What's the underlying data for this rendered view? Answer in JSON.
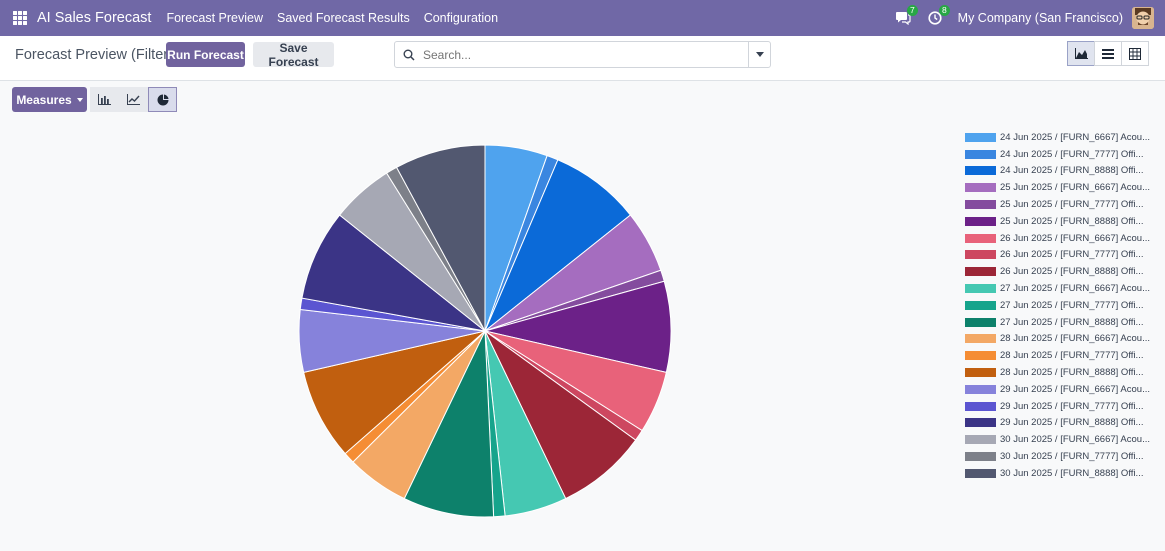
{
  "navbar": {
    "app_title": "AI Sales Forecast",
    "menu": [
      "Forecast Preview",
      "Saved Forecast Results",
      "Configuration"
    ],
    "messages_count": "7",
    "activities_count": "8",
    "company": "My Company (San Francisco)",
    "color": "#7068a6"
  },
  "control_panel": {
    "title": "Forecast Preview (Filtered)",
    "run_forecast": "Run Forecast",
    "save_forecast": "Save Forecast",
    "search_placeholder": "Search..."
  },
  "toolbar": {
    "measures": "Measures"
  },
  "chart_data": {
    "type": "pie",
    "legend_position": "right",
    "series": [
      {
        "label": "24 Jun 2025 / [FURN_6667] Acou...",
        "value": 5.5,
        "color": "#4fa3ee"
      },
      {
        "label": "24 Jun 2025 / [FURN_7777] Offi...",
        "value": 1.0,
        "color": "#3a86e0"
      },
      {
        "label": "24 Jun 2025 / [FURN_8888] Offi...",
        "value": 8.0,
        "color": "#0b6ad8"
      },
      {
        "label": "25 Jun 2025 / [FURN_6667] Acou...",
        "value": 5.5,
        "color": "#a56dbf"
      },
      {
        "label": "25 Jun 2025 / [FURN_7777] Offi...",
        "value": 1.0,
        "color": "#844c9e"
      },
      {
        "label": "25 Jun 2025 / [FURN_8888] Offi...",
        "value": 8.0,
        "color": "#6c2188"
      },
      {
        "label": "26 Jun 2025 / [FURN_6667] Acou...",
        "value": 5.5,
        "color": "#e8627a"
      },
      {
        "label": "26 Jun 2025 / [FURN_7777] Offi...",
        "value": 1.0,
        "color": "#cd4760"
      },
      {
        "label": "26 Jun 2025 / [FURN_8888] Offi...",
        "value": 8.0,
        "color": "#9c2637"
      },
      {
        "label": "27 Jun 2025 / [FURN_6667] Acou...",
        "value": 5.5,
        "color": "#45c8b2"
      },
      {
        "label": "27 Jun 2025 / [FURN_7777] Offi...",
        "value": 1.0,
        "color": "#16a48c"
      },
      {
        "label": "27 Jun 2025 / [FURN_8888] Offi...",
        "value": 8.0,
        "color": "#0d816b"
      },
      {
        "label": "28 Jun 2025 / [FURN_6667] Acou...",
        "value": 5.5,
        "color": "#f3a865"
      },
      {
        "label": "28 Jun 2025 / [FURN_7777] Offi...",
        "value": 1.0,
        "color": "#f58d34"
      },
      {
        "label": "28 Jun 2025 / [FURN_8888] Offi...",
        "value": 8.0,
        "color": "#c15f0f"
      },
      {
        "label": "29 Jun 2025 / [FURN_6667] Acou...",
        "value": 5.5,
        "color": "#8682db"
      },
      {
        "label": "29 Jun 2025 / [FURN_7777] Offi...",
        "value": 1.0,
        "color": "#5b55d1"
      },
      {
        "label": "29 Jun 2025 / [FURN_8888] Offi...",
        "value": 8.0,
        "color": "#3b3486"
      },
      {
        "label": "30 Jun 2025 / [FURN_6667] Acou...",
        "value": 5.5,
        "color": "#a6a8b4"
      },
      {
        "label": "30 Jun 2025 / [FURN_7777] Offi...",
        "value": 1.0,
        "color": "#7d8089"
      },
      {
        "label": "30 Jun 2025 / [FURN_8888] Offi...",
        "value": 8.0,
        "color": "#525870"
      }
    ]
  }
}
